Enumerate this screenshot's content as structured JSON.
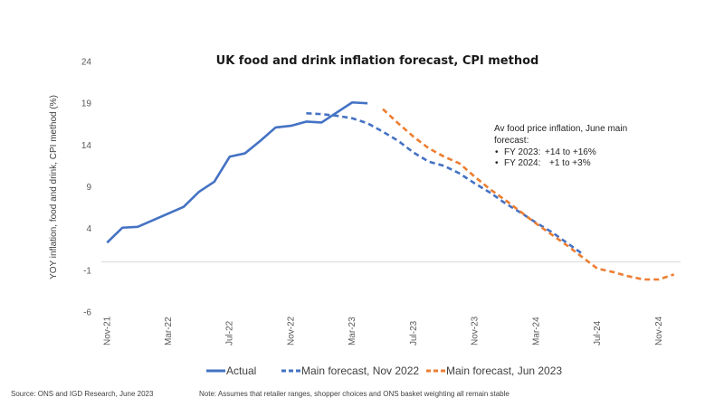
{
  "chart_data": {
    "type": "line",
    "title": "UK food and drink inflation forecast, CPI method",
    "xlabel": "",
    "ylabel": "YOY inflation, food and drink, CPI method (%)",
    "ylim": [
      -6,
      24
    ],
    "yticks": [
      24,
      19,
      14,
      9,
      4,
      -1,
      -6
    ],
    "xlim_month_index": [
      0,
      37
    ],
    "x_start": "Nov-21",
    "xticks": [
      {
        "label": "Nov-21",
        "m": 0
      },
      {
        "label": "Mar-22",
        "m": 4
      },
      {
        "label": "Jul-22",
        "m": 8
      },
      {
        "label": "Nov-22",
        "m": 12
      },
      {
        "label": "Mar-23",
        "m": 16
      },
      {
        "label": "Jul-23",
        "m": 20
      },
      {
        "label": "Nov-23",
        "m": 24
      },
      {
        "label": "Mar-24",
        "m": 28
      },
      {
        "label": "Jul-24",
        "m": 32
      },
      {
        "label": "Nov-24",
        "m": 36
      }
    ],
    "zero_line": true,
    "grid": false,
    "legend_position": "bottom",
    "series": [
      {
        "name": "Actual",
        "style": "solid",
        "color": "#4472C4",
        "start_m": 0,
        "x": [
          "Nov-21",
          "Dec-21",
          "Jan-22",
          "Feb-22",
          "Mar-22",
          "Apr-22",
          "May-22",
          "Jun-22",
          "Jul-22",
          "Aug-22",
          "Sep-22",
          "Oct-22",
          "Nov-22",
          "Dec-22",
          "Jan-23",
          "Feb-23",
          "Mar-23",
          "Apr-23"
        ],
        "values": [
          2.3,
          4.1,
          4.2,
          5.0,
          5.8,
          6.6,
          8.4,
          9.6,
          12.6,
          13.0,
          14.5,
          16.1,
          16.3,
          16.8,
          16.7,
          17.9,
          19.1,
          19.0
        ]
      },
      {
        "name": "Main forecast, Nov 2022",
        "style": "dashed",
        "color": "#4472C4",
        "start_m": 13,
        "x": [
          "Dec-22",
          "Jan-23",
          "Feb-23",
          "Mar-23",
          "Apr-23",
          "May-23",
          "Jun-23",
          "Jul-23",
          "Aug-23",
          "Sep-23",
          "Oct-23",
          "Nov-23",
          "Dec-23",
          "Jan-24",
          "Feb-24",
          "Mar-24",
          "Apr-24",
          "May-24",
          "Jun-24"
        ],
        "values": [
          17.8,
          17.7,
          17.5,
          17.2,
          16.6,
          15.6,
          14.5,
          13.1,
          12.0,
          11.5,
          10.6,
          9.4,
          8.3,
          7.0,
          5.9,
          4.7,
          3.6,
          2.3,
          1.0
        ]
      },
      {
        "name": "Main forecast, Jun 2023",
        "style": "dashed",
        "color": "#ED7D31",
        "start_m": 18,
        "x": [
          "May-23",
          "Jun-23",
          "Jul-23",
          "Aug-23",
          "Sep-23",
          "Oct-23",
          "Nov-23",
          "Dec-23",
          "Jan-24",
          "Feb-24",
          "Mar-24",
          "Apr-24",
          "May-24",
          "Jun-24",
          "Jul-24",
          "Aug-24",
          "Sep-24",
          "Oct-24",
          "Nov-24",
          "Dec-24"
        ],
        "values": [
          18.3,
          16.6,
          15.0,
          13.6,
          12.6,
          11.8,
          10.2,
          8.7,
          7.4,
          6.0,
          4.6,
          3.3,
          2.0,
          0.6,
          -0.8,
          -1.2,
          -1.7,
          -2.1,
          -2.1,
          -1.5
        ]
      }
    ],
    "annotation": {
      "heading_line1": "Av food price inflation, June main",
      "heading_line2": "forecast:",
      "bullets": [
        {
          "label": "FY 2023:",
          "value": "+14 to +16%"
        },
        {
          "label": "FY 2024:",
          "value": "+1 to +3%"
        }
      ]
    }
  },
  "footer": {
    "source": "Source: ONS and IGD Research, June 2023",
    "note": "Note: Assumes that retailer ranges, shopper choices and ONS basket weighting all remain stable"
  },
  "colors": {
    "blue": "#4472C4",
    "orange": "#ED7D31",
    "zero_line": "#D9D9D9"
  }
}
